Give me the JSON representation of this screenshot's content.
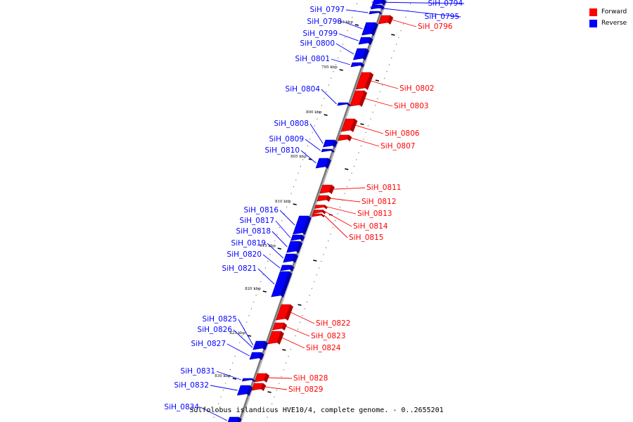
{
  "legend": {
    "forward_label": "Forward",
    "reverse_label": "Reverse",
    "forward_color": "#ff0000",
    "reverse_color": "#0000ff"
  },
  "caption": "Sulfolobus islandicus HVE10/4, complete genome. - 0..2655201",
  "genes": [
    {
      "name": "SiH_0794",
      "strand": "reverse"
    },
    {
      "name": "SiH_0795",
      "strand": "reverse"
    },
    {
      "name": "SiH_0796",
      "strand": "forward"
    },
    {
      "name": "SiH_0797",
      "strand": "reverse"
    },
    {
      "name": "SiH_0798",
      "strand": "reverse"
    },
    {
      "name": "SiH_0799",
      "strand": "reverse"
    },
    {
      "name": "SiH_0800",
      "strand": "reverse"
    },
    {
      "name": "SiH_0801",
      "strand": "reverse"
    },
    {
      "name": "SiH_0802",
      "strand": "forward"
    },
    {
      "name": "SiH_0803",
      "strand": "forward"
    },
    {
      "name": "SiH_0804",
      "strand": "reverse"
    },
    {
      "name": "SiH_0806",
      "strand": "forward"
    },
    {
      "name": "SiH_0807",
      "strand": "forward"
    },
    {
      "name": "SiH_0808",
      "strand": "reverse"
    },
    {
      "name": "SiH_0809",
      "strand": "reverse"
    },
    {
      "name": "SiH_0810",
      "strand": "reverse"
    },
    {
      "name": "SiH_0811",
      "strand": "forward"
    },
    {
      "name": "SiH_0812",
      "strand": "forward"
    },
    {
      "name": "SiH_0813",
      "strand": "forward"
    },
    {
      "name": "SiH_0814",
      "strand": "forward"
    },
    {
      "name": "SiH_0815",
      "strand": "forward"
    },
    {
      "name": "SiH_0816",
      "strand": "reverse"
    },
    {
      "name": "SiH_0817",
      "strand": "reverse"
    },
    {
      "name": "SiH_0818",
      "strand": "reverse"
    },
    {
      "name": "SiH_0819",
      "strand": "reverse"
    },
    {
      "name": "SiH_0820",
      "strand": "reverse"
    },
    {
      "name": "SiH_0821",
      "strand": "reverse"
    },
    {
      "name": "SiH_0822",
      "strand": "forward"
    },
    {
      "name": "SiH_0823",
      "strand": "forward"
    },
    {
      "name": "SiH_0824",
      "strand": "forward"
    },
    {
      "name": "SiH_0825",
      "strand": "reverse"
    },
    {
      "name": "SiH_0826",
      "strand": "reverse"
    },
    {
      "name": "SiH_0827",
      "strand": "reverse"
    },
    {
      "name": "SiH_0828",
      "strand": "forward"
    },
    {
      "name": "SiH_0829",
      "strand": "forward"
    },
    {
      "name": "SiH_0831",
      "strand": "reverse"
    },
    {
      "name": "SiH_0832",
      "strand": "reverse"
    },
    {
      "name": "SiH_0834",
      "strand": "reverse"
    }
  ],
  "scale_marks": [
    "790 kbp",
    "795 kbp",
    "800 kbp",
    "805 kbp",
    "810 kbp",
    "815 kbp",
    "820 kbp",
    "825 kbp",
    "830 kbp"
  ]
}
